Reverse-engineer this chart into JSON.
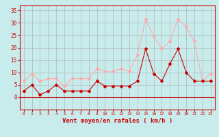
{
  "hours": [
    0,
    1,
    2,
    3,
    4,
    5,
    6,
    7,
    8,
    9,
    10,
    11,
    12,
    13,
    14,
    15,
    16,
    17,
    18,
    19,
    20,
    21,
    22,
    23
  ],
  "wind_avg": [
    2.5,
    5,
    1,
    2.5,
    5,
    2.5,
    2.5,
    2.5,
    2.5,
    6.5,
    4.5,
    4.5,
    4.5,
    4.5,
    6.5,
    19.5,
    9.5,
    6.5,
    13.5,
    19.5,
    10,
    6.5,
    6.5,
    6.5
  ],
  "wind_gust": [
    6.5,
    9.5,
    6.5,
    7.5,
    7.5,
    4.5,
    7.5,
    7.5,
    7.5,
    11.5,
    10.5,
    10.5,
    11.5,
    10.5,
    17,
    31.5,
    24.5,
    19.5,
    22.5,
    31.5,
    28.5,
    22.5,
    6.5,
    9.5
  ],
  "color_avg": "#cc0000",
  "color_gust": "#ffaaaa",
  "bg_color": "#c8ecec",
  "grid_color": "#aaaaaa",
  "xlabel": "Vent moyen/en rafales ( km/h )",
  "xlabel_color": "#cc0000",
  "tick_color": "#cc0000",
  "axis_color": "#cc0000",
  "ylim": [
    -5,
    37
  ],
  "yticks": [
    0,
    5,
    10,
    15,
    20,
    25,
    30,
    35
  ],
  "xlim": [
    -0.5,
    23.5
  ],
  "marker": "D",
  "marker_size": 2.0,
  "line_width": 0.8
}
